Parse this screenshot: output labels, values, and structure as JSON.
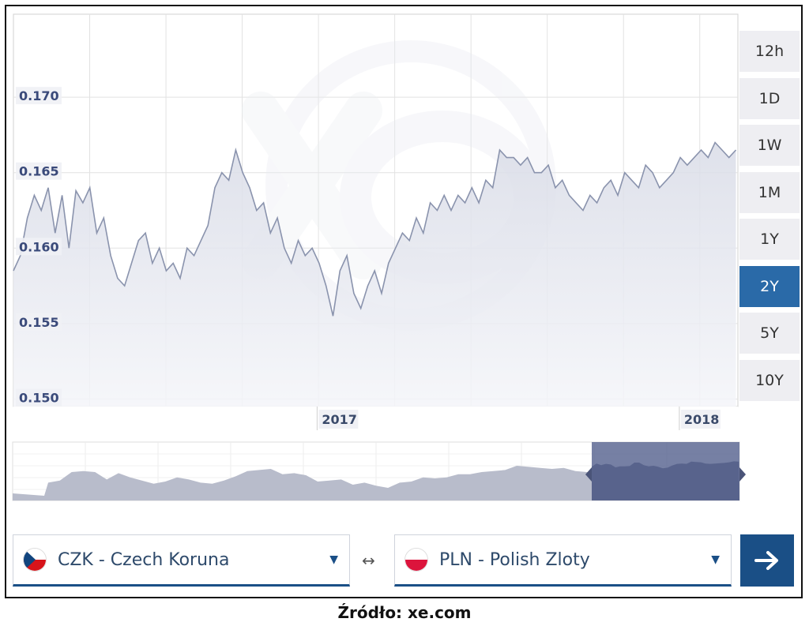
{
  "chart_data": {
    "type": "area",
    "title": "",
    "xlabel": "",
    "ylabel": "",
    "ylim": [
      0.1495,
      0.1755
    ],
    "y_ticks": [
      "0.170",
      "0.165",
      "0.160",
      "0.155",
      "0.150"
    ],
    "y_tick_values": [
      0.17,
      0.165,
      0.16,
      0.155,
      0.15
    ],
    "x_ticks": [
      "2017",
      "2018"
    ],
    "x_tick_values": [
      "2017-01",
      "2018-01"
    ],
    "xlim": [
      "2016-03",
      "2018-03"
    ],
    "grid": true,
    "series": [
      {
        "x": [
          "2016-03-01",
          "2016-03-08",
          "2016-03-15",
          "2016-03-22",
          "2016-03-29",
          "2016-04-05",
          "2016-04-12",
          "2016-04-19",
          "2016-04-26",
          "2016-05-03",
          "2016-05-10",
          "2016-05-17",
          "2016-05-24",
          "2016-05-31",
          "2016-06-07",
          "2016-06-14",
          "2016-06-21",
          "2016-06-28",
          "2016-07-05",
          "2016-07-12",
          "2016-07-19",
          "2016-07-26",
          "2016-08-02",
          "2016-08-09",
          "2016-08-16",
          "2016-08-23",
          "2016-08-30",
          "2016-09-06",
          "2016-09-13",
          "2016-09-20",
          "2016-09-27",
          "2016-10-04",
          "2016-10-11",
          "2016-10-18",
          "2016-10-25",
          "2016-11-01",
          "2016-11-08",
          "2016-11-15",
          "2016-11-22",
          "2016-11-29",
          "2016-12-06",
          "2016-12-13",
          "2016-12-20",
          "2016-12-27",
          "2017-01-03",
          "2017-01-10",
          "2017-01-17",
          "2017-01-24",
          "2017-01-31",
          "2017-02-07",
          "2017-02-14",
          "2017-02-21",
          "2017-02-28",
          "2017-03-07",
          "2017-03-14",
          "2017-03-21",
          "2017-03-28",
          "2017-04-04",
          "2017-04-11",
          "2017-04-18",
          "2017-04-25",
          "2017-05-02",
          "2017-05-09",
          "2017-05-16",
          "2017-05-23",
          "2017-05-30",
          "2017-06-06",
          "2017-06-13",
          "2017-06-20",
          "2017-06-27",
          "2017-07-04",
          "2017-07-11",
          "2017-07-18",
          "2017-07-25",
          "2017-08-01",
          "2017-08-08",
          "2017-08-15",
          "2017-08-22",
          "2017-08-29",
          "2017-09-05",
          "2017-09-12",
          "2017-09-19",
          "2017-09-26",
          "2017-10-03",
          "2017-10-10",
          "2017-10-17",
          "2017-10-24",
          "2017-10-31",
          "2017-11-07",
          "2017-11-14",
          "2017-11-21",
          "2017-11-28",
          "2017-12-05",
          "2017-12-12",
          "2017-12-19",
          "2017-12-26",
          "2018-01-02",
          "2018-01-09",
          "2018-01-16",
          "2018-01-23",
          "2018-01-30",
          "2018-02-06",
          "2018-02-13",
          "2018-02-20",
          "2018-02-27"
        ],
        "values": [
          0.1585,
          0.1595,
          0.162,
          0.1635,
          0.1625,
          0.164,
          0.161,
          0.1635,
          0.16,
          0.1638,
          0.163,
          0.164,
          0.161,
          0.162,
          0.1595,
          0.158,
          0.1575,
          0.159,
          0.1605,
          0.161,
          0.159,
          0.16,
          0.1585,
          0.159,
          0.158,
          0.16,
          0.1595,
          0.1605,
          0.1615,
          0.164,
          0.165,
          0.1645,
          0.1665,
          0.165,
          0.164,
          0.1625,
          0.163,
          0.161,
          0.162,
          0.16,
          0.159,
          0.1605,
          0.1595,
          0.16,
          0.159,
          0.1575,
          0.1555,
          0.1585,
          0.1595,
          0.157,
          0.156,
          0.1575,
          0.1585,
          0.157,
          0.159,
          0.16,
          0.161,
          0.1605,
          0.162,
          0.161,
          0.163,
          0.1625,
          0.1635,
          0.1625,
          0.1635,
          0.163,
          0.164,
          0.163,
          0.1645,
          0.164,
          0.1665,
          0.166,
          0.166,
          0.1655,
          0.166,
          0.165,
          0.165,
          0.1655,
          0.164,
          0.1645,
          0.1635,
          0.163,
          0.1625,
          0.1635,
          0.163,
          0.164,
          0.1645,
          0.1635,
          0.165,
          0.1645,
          0.164,
          0.1655,
          0.165,
          0.164,
          0.1645,
          0.165,
          0.166,
          0.1655,
          0.166,
          0.1665,
          0.166,
          0.167,
          0.1665,
          0.166,
          0.1665
        ]
      }
    ]
  },
  "navigator": {
    "selected_range": [
      "2016-03",
      "2018-03"
    ]
  },
  "range_buttons": [
    {
      "label": "12h"
    },
    {
      "label": "1D"
    },
    {
      "label": "1W"
    },
    {
      "label": "1M"
    },
    {
      "label": "1Y"
    },
    {
      "label": "2Y",
      "active": true
    },
    {
      "label": "5Y"
    },
    {
      "label": "10Y"
    }
  ],
  "converter": {
    "from": {
      "label": "CZK - Czech Koruna"
    },
    "to": {
      "label": "PLN - Polish Zloty"
    },
    "swap_symbol": "↔",
    "go_icon": "arrow-right-icon"
  },
  "source": "Źródło: xe.com",
  "colors": {
    "line": "#8a93ad",
    "area": "#e3e6ee",
    "grid": "#d8d8d8",
    "active_button": "#2a6aa8",
    "navigator_selected": "#5e6a94",
    "navigator_area": "#b8bccb",
    "go_button": "#1a4f86"
  }
}
